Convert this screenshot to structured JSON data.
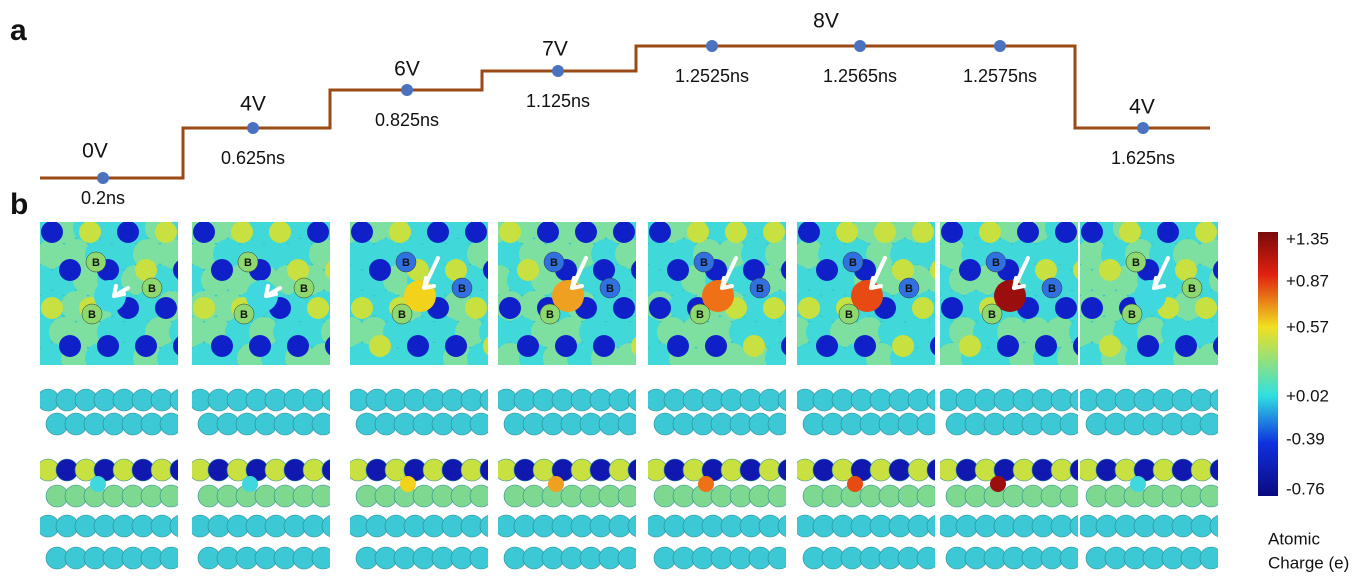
{
  "panel_a": {
    "label": "a",
    "steps": [
      {
        "voltage": "0V",
        "times": [
          "0.2ns"
        ]
      },
      {
        "voltage": "4V",
        "times": [
          "0.625ns"
        ]
      },
      {
        "voltage": "6V",
        "times": [
          "0.825ns"
        ]
      },
      {
        "voltage": "7V",
        "times": [
          "1.125ns"
        ]
      },
      {
        "voltage": "8V",
        "times": [
          "1.2525ns",
          "1.2565ns",
          "1.2575ns"
        ]
      },
      {
        "voltage": "4V",
        "times": [
          "1.625ns"
        ]
      }
    ]
  },
  "panel_b": {
    "label": "b",
    "snapshots": [
      {
        "boron_labels": [
          "B",
          "B",
          "B"
        ],
        "center_color": "#40d8e0"
      },
      {
        "boron_labels": [
          "B",
          "B",
          "B"
        ],
        "center_color": "#40d8e0"
      },
      {
        "boron_labels": [
          "B",
          "B",
          "B"
        ],
        "center_color": "#f2d21a"
      },
      {
        "boron_labels": [
          "B",
          "B",
          "B"
        ],
        "center_color": "#f0a020"
      },
      {
        "boron_labels": [
          "B",
          "B",
          "B"
        ],
        "center_color": "#f07018"
      },
      {
        "boron_labels": [
          "B",
          "B",
          "B"
        ],
        "center_color": "#e84a14"
      },
      {
        "boron_labels": [
          "B",
          "B",
          "B"
        ],
        "center_color": "#9a0e0e"
      },
      {
        "boron_labels": [
          "B",
          "B",
          "B"
        ],
        "center_color": "#40d8e0"
      }
    ]
  },
  "colorbar": {
    "ticks": [
      "+1.35",
      "+0.87",
      "+0.57",
      "+0.02",
      "-0.39",
      "-0.76"
    ],
    "title": [
      "Atomic",
      "Charge (e)"
    ]
  }
}
